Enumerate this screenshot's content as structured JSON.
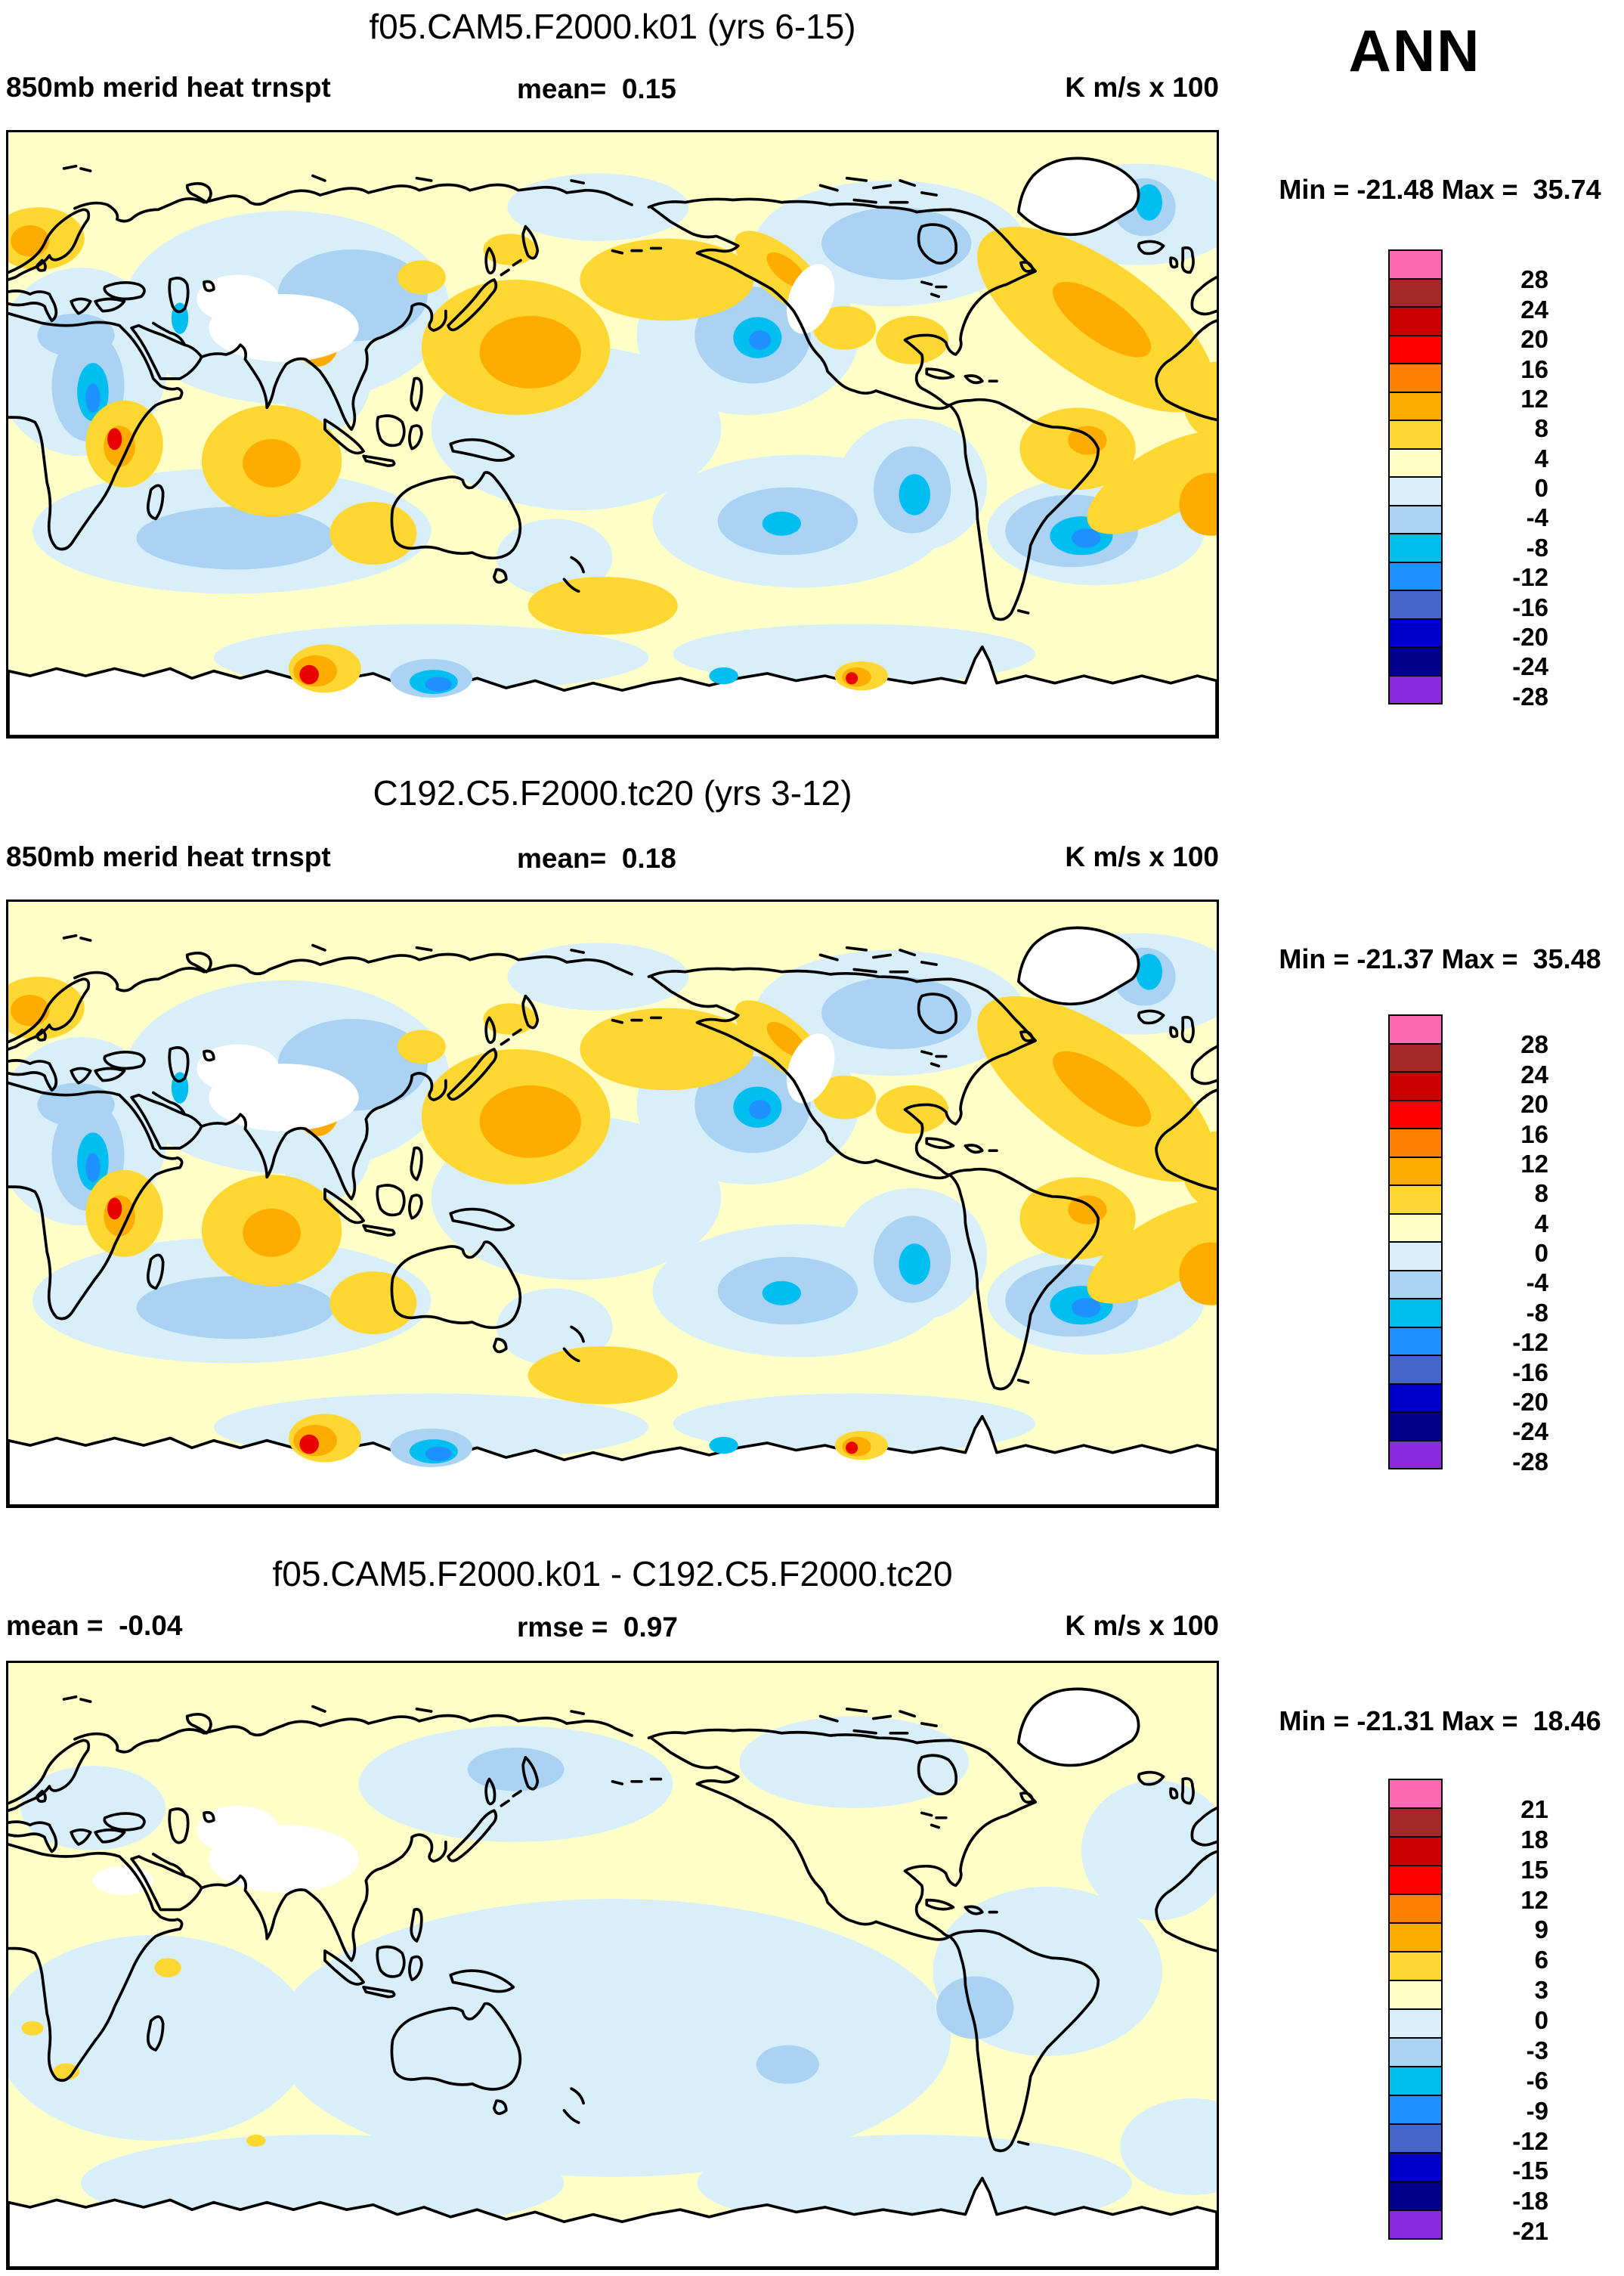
{
  "page": {
    "season": "ANN",
    "figure_kind": "850mb meridional heat transport model comparison"
  },
  "panels": [
    {
      "title": "f05.CAM5.F2000.k01 (yrs 6-15)",
      "row": {
        "left": "850mb merid heat trnspt",
        "mid": "mean=  0.15",
        "right": "K m/s x 100"
      },
      "minmax": "Min = -21.48 Max =  35.74",
      "colorbar": {
        "labels": [
          "28",
          "24",
          "20",
          "16",
          "12",
          "8",
          "4",
          "0",
          "-4",
          "-8",
          "-12",
          "-16",
          "-20",
          "-24",
          "-28"
        ],
        "colors": [
          "#FF69B4",
          "#A42828",
          "#CC0000",
          "#FF0000",
          "#FF8000",
          "#FFAC00",
          "#FFD732",
          "#FFFFC8",
          "#D8EFFA",
          "#A9D2F3",
          "#00BFF0",
          "#1E90FF",
          "#4466CC",
          "#0000CD",
          "#00008B",
          "#8A2BE2"
        ]
      }
    },
    {
      "title": "C192.C5.F2000.tc20 (yrs 3-12)",
      "row": {
        "left": "850mb merid heat trnspt",
        "mid": "mean=  0.18",
        "right": "K m/s x 100"
      },
      "minmax": "Min = -21.37 Max =  35.48",
      "colorbar": {
        "labels": [
          "28",
          "24",
          "20",
          "16",
          "12",
          "8",
          "4",
          "0",
          "-4",
          "-8",
          "-12",
          "-16",
          "-20",
          "-24",
          "-28"
        ],
        "colors": [
          "#FF69B4",
          "#A42828",
          "#CC0000",
          "#FF0000",
          "#FF8000",
          "#FFAC00",
          "#FFD732",
          "#FFFFC8",
          "#D8EFFA",
          "#A9D2F3",
          "#00BFF0",
          "#1E90FF",
          "#4466CC",
          "#0000CD",
          "#00008B",
          "#8A2BE2"
        ]
      }
    },
    {
      "title": "f05.CAM5.F2000.k01 - C192.C5.F2000.tc20",
      "row": {
        "left": "mean =  -0.04",
        "mid": "rmse =  0.97",
        "right": "K m/s x 100"
      },
      "minmax": "Min = -21.31 Max =  18.46",
      "colorbar": {
        "labels": [
          "21",
          "18",
          "15",
          "12",
          "9",
          "6",
          "3",
          "0",
          "-3",
          "-6",
          "-9",
          "-12",
          "-15",
          "-18",
          "-21"
        ],
        "colors": [
          "#FF69B4",
          "#A42828",
          "#CC0000",
          "#FF0000",
          "#FF8000",
          "#FFAC00",
          "#FFD732",
          "#FFFFC8",
          "#D8EFFA",
          "#A9D2F3",
          "#00BFF0",
          "#1E90FF",
          "#4466CC",
          "#0000CD",
          "#00008B",
          "#8A2BE2"
        ]
      }
    }
  ],
  "chart_data": [
    {
      "type": "heatmap",
      "title": "f05.CAM5.F2000.k01 (yrs 6-15)",
      "variable": "850mb merid heat trnspt",
      "units": "K m/s x 100",
      "season": "ANN",
      "projection": "global latitude-longitude contour map (0E-360E, 90N-90S)",
      "stats": {
        "mean": 0.15,
        "min": -21.48,
        "max": 35.74
      },
      "contour_levels": [
        -28,
        -24,
        -20,
        -16,
        -12,
        -8,
        -4,
        0,
        4,
        8,
        12,
        16,
        20,
        24,
        28
      ],
      "palette_top_to_bottom": [
        "#FF69B4",
        "#A42828",
        "#CC0000",
        "#FF0000",
        "#FF8000",
        "#FFAC00",
        "#FFD732",
        "#FFFFC8",
        "#D8EFFA",
        "#A9D2F3",
        "#00BFF0",
        "#1E90FF",
        "#4466CC",
        "#0000CD",
        "#00008B",
        "#8A2BE2"
      ],
      "legend_position": "right"
    },
    {
      "type": "heatmap",
      "title": "C192.C5.F2000.tc20 (yrs 3-12)",
      "variable": "850mb merid heat trnspt",
      "units": "K m/s x 100",
      "season": "ANN",
      "projection": "global latitude-longitude contour map (0E-360E, 90N-90S)",
      "stats": {
        "mean": 0.18,
        "min": -21.37,
        "max": 35.48
      },
      "contour_levels": [
        -28,
        -24,
        -20,
        -16,
        -12,
        -8,
        -4,
        0,
        4,
        8,
        12,
        16,
        20,
        24,
        28
      ],
      "palette_top_to_bottom": [
        "#FF69B4",
        "#A42828",
        "#CC0000",
        "#FF0000",
        "#FF8000",
        "#FFAC00",
        "#FFD732",
        "#FFFFC8",
        "#D8EFFA",
        "#A9D2F3",
        "#00BFF0",
        "#1E90FF",
        "#4466CC",
        "#0000CD",
        "#00008B",
        "#8A2BE2"
      ],
      "legend_position": "right"
    },
    {
      "type": "heatmap",
      "title": "f05.CAM5.F2000.k01 - C192.C5.F2000.tc20",
      "variable": "difference of 850mb merid heat trnspt",
      "units": "K m/s x 100",
      "season": "ANN",
      "projection": "global latitude-longitude contour map (0E-360E, 90N-90S)",
      "stats": {
        "mean": -0.04,
        "rmse": 0.97,
        "min": -21.31,
        "max": 18.46
      },
      "contour_levels": [
        -21,
        -18,
        -15,
        -12,
        -9,
        -6,
        -3,
        0,
        3,
        6,
        9,
        12,
        15,
        18,
        21
      ],
      "palette_top_to_bottom": [
        "#FF69B4",
        "#A42828",
        "#CC0000",
        "#FF0000",
        "#FF8000",
        "#FFAC00",
        "#FFD732",
        "#FFFFC8",
        "#D8EFFA",
        "#A9D2F3",
        "#00BFF0",
        "#1E90FF",
        "#4466CC",
        "#0000CD",
        "#00008B",
        "#8A2BE2"
      ],
      "legend_position": "right"
    }
  ]
}
